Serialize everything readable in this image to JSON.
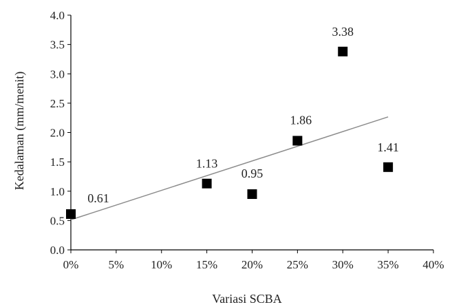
{
  "chart_data": {
    "type": "scatter",
    "xlabel": "Variasi SCBA",
    "ylabel": "Kedalaman  (mm/menit)",
    "xlim": [
      0,
      40
    ],
    "ylim": [
      0,
      4
    ],
    "x_ticks": [
      0,
      5,
      10,
      15,
      20,
      25,
      30,
      35,
      40
    ],
    "x_tick_labels": [
      "0%",
      "5%",
      "10%",
      "15%",
      "20%",
      "25%",
      "30%",
      "35%",
      "40%"
    ],
    "y_ticks": [
      0,
      0.5,
      1,
      1.5,
      2,
      2.5,
      3,
      3.5,
      4
    ],
    "y_tick_labels": [
      "0.0",
      "0.5",
      "1.0",
      "1.5",
      "2.0",
      "2.5",
      "3.0",
      "3.5",
      "4.0"
    ],
    "grid": false,
    "legend": "none",
    "marker": "square",
    "marker_color": "#000000",
    "trendline_color": "#8c8c8c",
    "series": [
      {
        "x": [
          0,
          15,
          20,
          25,
          30,
          35
        ],
        "y": [
          0.61,
          1.13,
          0.95,
          1.86,
          3.38,
          1.41
        ],
        "labels": [
          "0.61",
          "1.13",
          "0.95",
          "1.86",
          "3.38",
          "1.41"
        ]
      }
    ],
    "trendline": {
      "type": "linear",
      "x_range": [
        0,
        35
      ]
    }
  }
}
